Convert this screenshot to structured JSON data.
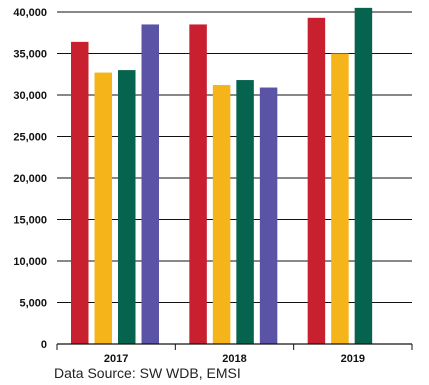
{
  "chart_data": {
    "type": "bar",
    "categories": [
      "2017",
      "2018",
      "2019"
    ],
    "series": [
      {
        "color": "#c8202f",
        "values": [
          36400,
          38500,
          39300
        ]
      },
      {
        "color": "#f4b41a",
        "values": [
          32700,
          31200,
          35000
        ]
      },
      {
        "color": "#06634d",
        "values": [
          33000,
          31800,
          40500
        ]
      },
      {
        "color": "#5b53a6",
        "values": [
          38500,
          30900,
          null
        ]
      }
    ],
    "ylim": [
      0,
      40000
    ],
    "yticks": [
      0,
      5000,
      10000,
      15000,
      20000,
      25000,
      30000,
      35000,
      40000
    ],
    "ytick_labels": [
      "0",
      "5,000",
      "10,000",
      "15,000",
      "20,000",
      "25,000",
      "30,000",
      "35,000",
      "40,000"
    ],
    "grid": true,
    "title": "",
    "xlabel": "",
    "ylabel": ""
  },
  "source_note": "Data Source: SW WDB, EMSI"
}
